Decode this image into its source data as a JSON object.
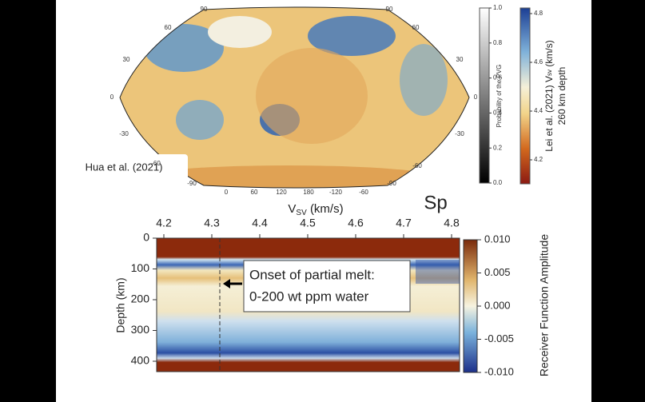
{
  "map": {
    "attribution": "Hua et al. (2021)",
    "lat_labels": [
      90,
      60,
      30,
      0,
      -30,
      -60,
      -90
    ],
    "lon_labels": [
      0,
      60,
      120,
      180,
      -120,
      -60
    ],
    "pvg_colorbar": {
      "label": "Probability of the PVG",
      "ticks": [
        {
          "value": 0,
          "label": "0.0"
        },
        0.2,
        0.4,
        0.6,
        0.8,
        {
          "value": 1,
          "label": "1.0"
        }
      ]
    },
    "vsv_colorbar": {
      "label_prefix": "Lei et al. (2021)",
      "label_v": "V",
      "label_sub": "sv",
      "label_unit": "(km/s)",
      "label_depth": "260 km depth",
      "ticks": [
        4.2,
        4.4,
        4.6,
        4.8
      ]
    }
  },
  "x_axis_label": {
    "v": "V",
    "sub": "SV",
    "unit": "(km/s)"
  },
  "panel_label": "Sp",
  "profile": {
    "xticks": [
      4.2,
      4.3,
      4.4,
      4.5,
      4.6,
      4.7,
      4.8
    ],
    "y_label": "Depth (km)",
    "yticks": [
      0,
      100,
      200,
      300,
      400
    ],
    "colorbar": {
      "label": "Receiver Function Amplitude",
      "ticks": [
        {
          "value": 0.01,
          "label": "0.010"
        },
        {
          "value": 0.005,
          "label": "0.005"
        },
        {
          "value": 0,
          "label": "0.000"
        },
        {
          "value": -0.005,
          "label": "-0.005"
        },
        {
          "value": -0.01,
          "label": "-0.010"
        }
      ]
    },
    "annotation": [
      "Onset of partial melt:",
      "0-200 wt ppm water"
    ]
  }
}
